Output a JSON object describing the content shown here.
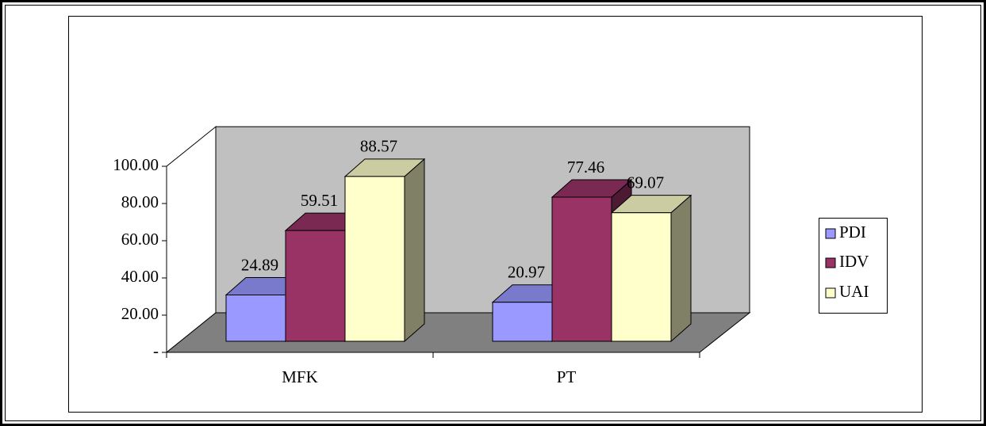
{
  "chart_data": {
    "type": "bar3d",
    "categories": [
      "MFK",
      "PT"
    ],
    "series": [
      {
        "name": "PDI",
        "color": "#9999ff",
        "values": [
          24.89,
          20.97
        ]
      },
      {
        "name": "IDV",
        "color": "#993366",
        "values": [
          59.51,
          77.46
        ]
      },
      {
        "name": "UAI",
        "color": "#ffffcc",
        "values": [
          88.57,
          69.07
        ]
      }
    ],
    "ylim": [
      0,
      100
    ],
    "yticks": [
      {
        "value": 0,
        "label": "-"
      },
      {
        "value": 20,
        "label": "20.00"
      },
      {
        "value": 40,
        "label": "40.00"
      },
      {
        "value": 60,
        "label": "60.00"
      },
      {
        "value": 80,
        "label": "80.00"
      },
      {
        "value": 100,
        "label": "100.00"
      }
    ],
    "legend": "right"
  }
}
